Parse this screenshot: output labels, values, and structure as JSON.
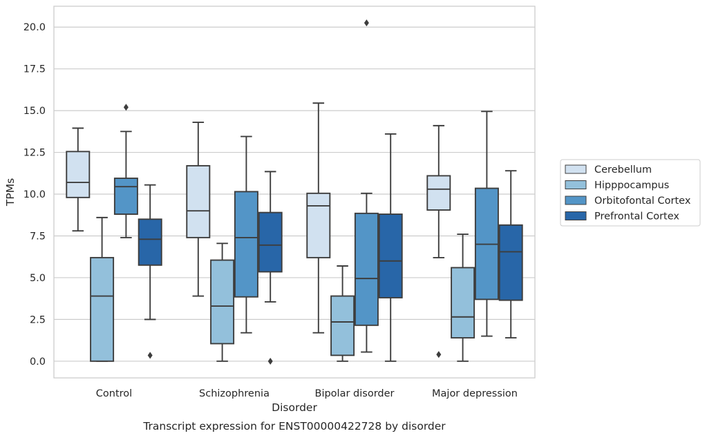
{
  "caption": "Transcript expression for ENST00000422728 by disorder",
  "chart_data": {
    "type": "box",
    "xlabel": "Disorder",
    "ylabel": "TPMs",
    "ylim": [
      -1.0,
      21.25
    ],
    "yticks": [
      "0.0",
      "2.5",
      "5.0",
      "7.5",
      "10.0",
      "12.5",
      "15.0",
      "17.5",
      "20.0"
    ],
    "ytick_values": [
      0,
      2.5,
      5,
      7.5,
      10,
      12.5,
      15,
      17.5,
      20
    ],
    "grid": "horizontal",
    "legend_position": "right",
    "categories": [
      "Control",
      "Schizophrenia",
      "Bipolar disorder",
      "Major depression"
    ],
    "series": [
      {
        "name": "Cerebellum",
        "color": "#d1e1f0",
        "boxes": [
          {
            "whislo": 7.8,
            "q1": 9.8,
            "med": 10.7,
            "q3": 12.55,
            "whishi": 13.95,
            "fliers": []
          },
          {
            "whislo": 3.9,
            "q1": 7.4,
            "med": 9.0,
            "q3": 11.7,
            "whishi": 14.3,
            "fliers": []
          },
          {
            "whislo": 1.7,
            "q1": 6.2,
            "med": 9.3,
            "q3": 10.05,
            "whishi": 15.45,
            "fliers": []
          },
          {
            "whislo": 6.2,
            "q1": 9.05,
            "med": 10.3,
            "q3": 11.1,
            "whishi": 14.1,
            "fliers": [
              0.4
            ]
          }
        ]
      },
      {
        "name": "Hipppocampus",
        "color": "#93c0db",
        "boxes": [
          {
            "whislo": 0.0,
            "q1": 0.0,
            "med": 3.9,
            "q3": 6.2,
            "whishi": 8.6,
            "fliers": []
          },
          {
            "whislo": 0.0,
            "q1": 1.05,
            "med": 3.3,
            "q3": 6.05,
            "whishi": 7.05,
            "fliers": []
          },
          {
            "whislo": 0.0,
            "q1": 0.35,
            "med": 2.35,
            "q3": 3.9,
            "whishi": 5.7,
            "fliers": []
          },
          {
            "whislo": 0.0,
            "q1": 1.4,
            "med": 2.65,
            "q3": 5.6,
            "whishi": 7.6,
            "fliers": []
          }
        ]
      },
      {
        "name": "Orbitofontal Cortex",
        "color": "#5395c7",
        "boxes": [
          {
            "whislo": 7.4,
            "q1": 8.8,
            "med": 10.45,
            "q3": 10.95,
            "whishi": 13.75,
            "fliers": [
              15.2
            ]
          },
          {
            "whislo": 1.7,
            "q1": 3.85,
            "med": 7.4,
            "q3": 10.15,
            "whishi": 13.45,
            "fliers": []
          },
          {
            "whislo": 0.55,
            "q1": 2.15,
            "med": 4.95,
            "q3": 8.85,
            "whishi": 10.05,
            "fliers": [
              20.25
            ]
          },
          {
            "whislo": 1.5,
            "q1": 3.7,
            "med": 7.0,
            "q3": 10.35,
            "whishi": 14.95,
            "fliers": []
          }
        ]
      },
      {
        "name": "Prefrontal Cortex",
        "color": "#2866a8",
        "boxes": [
          {
            "whislo": 2.5,
            "q1": 5.75,
            "med": 7.3,
            "q3": 8.5,
            "whishi": 10.55,
            "fliers": [
              0.35
            ]
          },
          {
            "whislo": 3.55,
            "q1": 5.35,
            "med": 6.95,
            "q3": 8.9,
            "whishi": 11.35,
            "fliers": [
              0.0
            ]
          },
          {
            "whislo": 0.0,
            "q1": 3.8,
            "med": 6.0,
            "q3": 8.8,
            "whishi": 13.6,
            "fliers": []
          },
          {
            "whislo": 1.4,
            "q1": 3.65,
            "med": 6.55,
            "q3": 8.15,
            "whishi": 11.4,
            "fliers": []
          }
        ]
      }
    ]
  }
}
